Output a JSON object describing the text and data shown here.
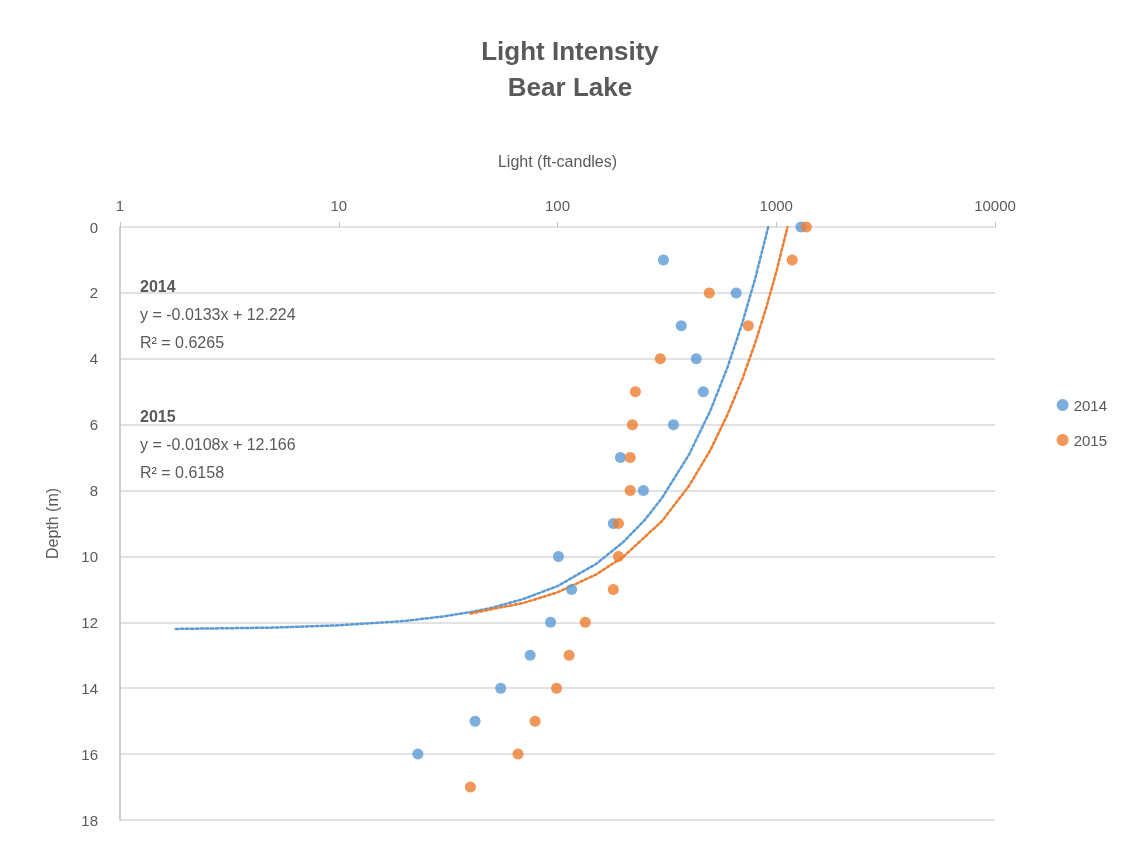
{
  "chart_data": {
    "type": "scatter",
    "title": "Light Intensity",
    "subtitle": "Bear Lake",
    "xlabel": "Light (ft-candles)",
    "ylabel": "Depth (m)",
    "log": "x",
    "xlim": [
      1,
      10000
    ],
    "xticks": [
      1,
      10,
      100,
      1000,
      10000
    ],
    "ylim": [
      18,
      0
    ],
    "yticks": [
      0,
      2,
      4,
      6,
      8,
      10,
      12,
      14,
      16,
      18
    ],
    "grid": "y",
    "legend": "right",
    "marker": "circle",
    "series": [
      {
        "name": "2014",
        "color": "#5b9bd5",
        "x": [
          1297,
          305,
          656,
          368,
          431,
          464,
          339,
          194,
          247,
          180,
          101,
          116,
          93,
          75,
          55,
          42,
          23
        ],
        "values": [
          0,
          1,
          2,
          3,
          4,
          5,
          6,
          7,
          8,
          9,
          10,
          11,
          12,
          13,
          14,
          15,
          16
        ]
      },
      {
        "name": "2015",
        "color": "#ed7d31",
        "x": [
          1372,
          1183,
          494,
          745,
          295,
          227,
          220,
          215,
          215,
          190,
          190,
          180,
          134,
          113,
          99,
          79,
          66,
          40
        ],
        "values": [
          0,
          1,
          2,
          3,
          4,
          5,
          6,
          7,
          8,
          9,
          10,
          11,
          12,
          13,
          14,
          15,
          16,
          17
        ]
      },
      {
        "type": "line",
        "color": "#5b9bd5",
        "line_style": "dotted",
        "marker": "none",
        "x": [
          1.8,
          5,
          10,
          20,
          30,
          40,
          50,
          70,
          100,
          150,
          200,
          250,
          300,
          400,
          500,
          600,
          700,
          800,
          919
        ],
        "values": [
          12.2,
          12.16,
          12.09,
          11.96,
          11.82,
          11.69,
          11.56,
          11.29,
          10.9,
          10.23,
          9.56,
          8.9,
          8.23,
          6.9,
          5.57,
          4.24,
          2.91,
          1.58,
          0
        ]
      },
      {
        "type": "line",
        "color": "#ed7d31",
        "line_style": "dotted",
        "marker": "none",
        "x": [
          40,
          70,
          100,
          150,
          200,
          300,
          400,
          500,
          600,
          700,
          800,
          900,
          1000,
          1126
        ],
        "values": [
          11.73,
          11.41,
          11.09,
          10.55,
          10.01,
          8.93,
          7.85,
          6.77,
          5.68,
          4.61,
          3.53,
          2.45,
          1.37,
          0
        ]
      }
    ],
    "annotations": [
      "2014",
      "y = -0.0133x + 12.224",
      "R² = 0.6265",
      "2015",
      "y = -0.0108x + 12.166",
      "R² = 0.6158"
    ]
  }
}
